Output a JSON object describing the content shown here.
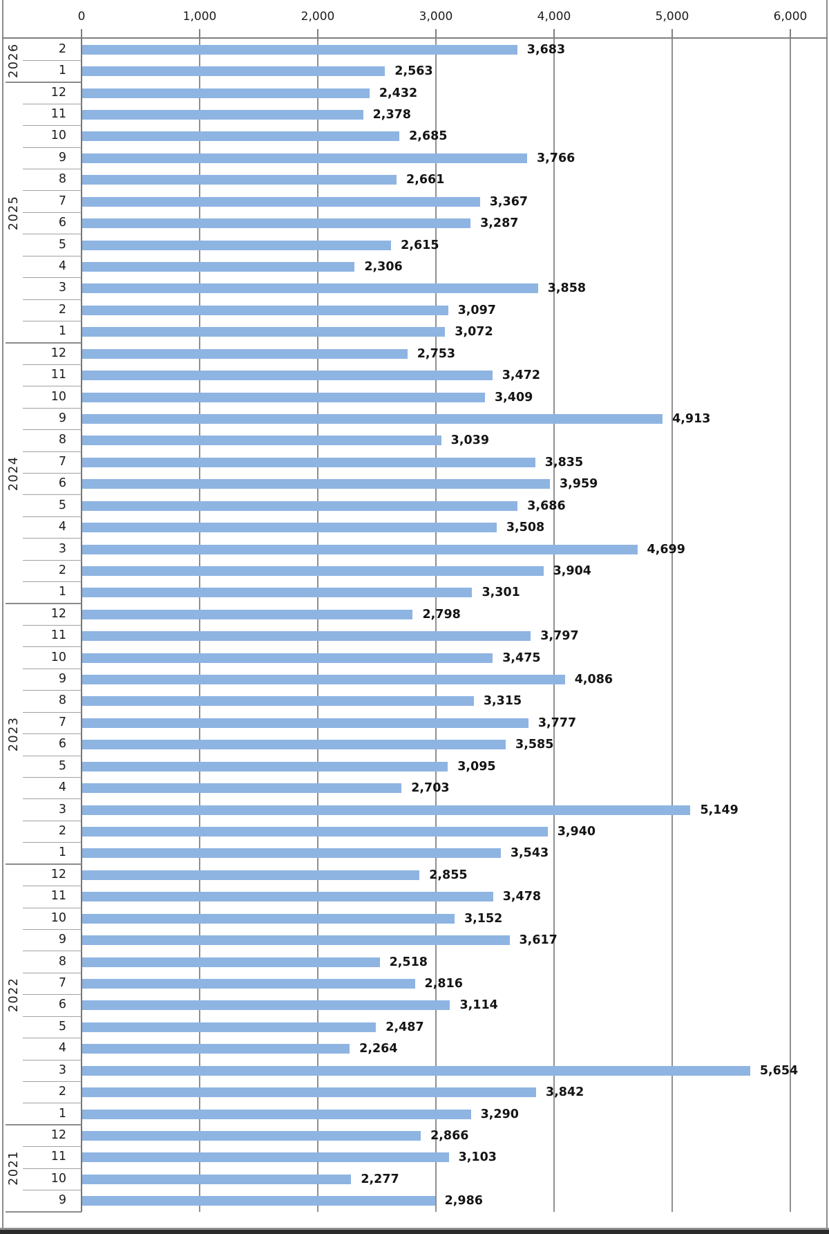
{
  "chart_data": {
    "type": "bar",
    "orientation": "horizontal",
    "title": "",
    "xlabel": "",
    "ylabel": "",
    "xlim": [
      0,
      6000
    ],
    "x_tick_values": [
      0,
      1000,
      2000,
      3000,
      4000,
      5000,
      6000
    ],
    "x_tick_labels": [
      "0",
      "1,000",
      "2,000",
      "3,000",
      "4,000",
      "5,000",
      "6,000"
    ],
    "grid": "vertical",
    "legend": "none",
    "bar_color": "#8EB4E2",
    "groups": [
      {
        "year": "2026",
        "rows": [
          {
            "month": "2",
            "value": 3683,
            "label": "3,683"
          },
          {
            "month": "1",
            "value": 2563,
            "label": "2,563"
          }
        ]
      },
      {
        "year": "2025",
        "rows": [
          {
            "month": "12",
            "value": 2432,
            "label": "2,432"
          },
          {
            "month": "11",
            "value": 2378,
            "label": "2,378"
          },
          {
            "month": "10",
            "value": 2685,
            "label": "2,685"
          },
          {
            "month": "9",
            "value": 3766,
            "label": "3,766"
          },
          {
            "month": "8",
            "value": 2661,
            "label": "2,661"
          },
          {
            "month": "7",
            "value": 3367,
            "label": "3,367"
          },
          {
            "month": "6",
            "value": 3287,
            "label": "3,287"
          },
          {
            "month": "5",
            "value": 2615,
            "label": "2,615"
          },
          {
            "month": "4",
            "value": 2306,
            "label": "2,306"
          },
          {
            "month": "3",
            "value": 3858,
            "label": "3,858"
          },
          {
            "month": "2",
            "value": 3097,
            "label": "3,097"
          },
          {
            "month": "1",
            "value": 3072,
            "label": "3,072"
          }
        ]
      },
      {
        "year": "2024",
        "rows": [
          {
            "month": "12",
            "value": 2753,
            "label": "2,753"
          },
          {
            "month": "11",
            "value": 3472,
            "label": "3,472"
          },
          {
            "month": "10",
            "value": 3409,
            "label": "3,409"
          },
          {
            "month": "9",
            "value": 4913,
            "label": "4,913"
          },
          {
            "month": "8",
            "value": 3039,
            "label": "3,039"
          },
          {
            "month": "7",
            "value": 3835,
            "label": "3,835"
          },
          {
            "month": "6",
            "value": 3959,
            "label": "3,959"
          },
          {
            "month": "5",
            "value": 3686,
            "label": "3,686"
          },
          {
            "month": "4",
            "value": 3508,
            "label": "3,508"
          },
          {
            "month": "3",
            "value": 4699,
            "label": "4,699"
          },
          {
            "month": "2",
            "value": 3904,
            "label": "3,904"
          },
          {
            "month": "1",
            "value": 3301,
            "label": "3,301"
          }
        ]
      },
      {
        "year": "2023",
        "rows": [
          {
            "month": "12",
            "value": 2798,
            "label": "2,798"
          },
          {
            "month": "11",
            "value": 3797,
            "label": "3,797"
          },
          {
            "month": "10",
            "value": 3475,
            "label": "3,475"
          },
          {
            "month": "9",
            "value": 4086,
            "label": "4,086"
          },
          {
            "month": "8",
            "value": 3315,
            "label": "3,315"
          },
          {
            "month": "7",
            "value": 3777,
            "label": "3,777"
          },
          {
            "month": "6",
            "value": 3585,
            "label": "3,585"
          },
          {
            "month": "5",
            "value": 3095,
            "label": "3,095"
          },
          {
            "month": "4",
            "value": 2703,
            "label": "2,703"
          },
          {
            "month": "3",
            "value": 5149,
            "label": "5,149"
          },
          {
            "month": "2",
            "value": 3940,
            "label": "3,940"
          },
          {
            "month": "1",
            "value": 3543,
            "label": "3,543"
          }
        ]
      },
      {
        "year": "2022",
        "rows": [
          {
            "month": "12",
            "value": 2855,
            "label": "2,855"
          },
          {
            "month": "11",
            "value": 3478,
            "label": "3,478"
          },
          {
            "month": "10",
            "value": 3152,
            "label": "3,152"
          },
          {
            "month": "9",
            "value": 3617,
            "label": "3,617"
          },
          {
            "month": "8",
            "value": 2518,
            "label": "2,518"
          },
          {
            "month": "7",
            "value": 2816,
            "label": "2,816"
          },
          {
            "month": "6",
            "value": 3114,
            "label": "3,114"
          },
          {
            "month": "5",
            "value": 2487,
            "label": "2,487"
          },
          {
            "month": "4",
            "value": 2264,
            "label": "2,264"
          },
          {
            "month": "3",
            "value": 5654,
            "label": "5,654"
          },
          {
            "month": "2",
            "value": 3842,
            "label": "3,842"
          },
          {
            "month": "1",
            "value": 3290,
            "label": "3,290"
          }
        ]
      },
      {
        "year": "2021",
        "rows": [
          {
            "month": "12",
            "value": 2866,
            "label": "2,866"
          },
          {
            "month": "11",
            "value": 3103,
            "label": "3,103"
          },
          {
            "month": "10",
            "value": 2277,
            "label": "2,277"
          },
          {
            "month": "9",
            "value": 2986,
            "label": "2,986"
          }
        ]
      }
    ]
  }
}
